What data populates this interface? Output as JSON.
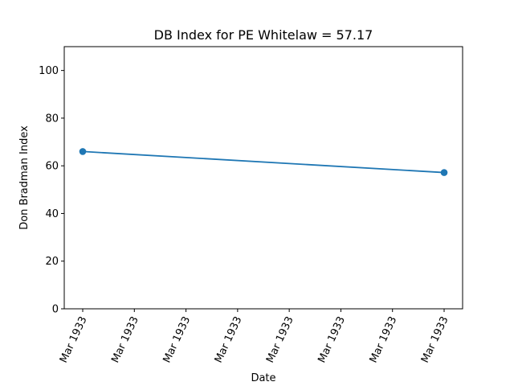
{
  "chart_data": {
    "type": "line",
    "title": "DB Index for PE Whitelaw = 57.17",
    "xlabel": "Date",
    "ylabel": "Don Bradman Index",
    "ylim": [
      0,
      110
    ],
    "yticks": [
      0,
      20,
      40,
      60,
      80,
      100
    ],
    "xticks": [
      "Mar 1933",
      "Mar 1933",
      "Mar 1933",
      "Mar 1933",
      "Mar 1933",
      "Mar 1933",
      "Mar 1933",
      "Mar 1933"
    ],
    "series": [
      {
        "name": "DB Index",
        "color": "#1f77b4",
        "points": [
          {
            "x": 0,
            "y": 66.0
          },
          {
            "x": 1,
            "y": 57.17
          }
        ]
      }
    ],
    "grid": false,
    "legend": "none"
  }
}
